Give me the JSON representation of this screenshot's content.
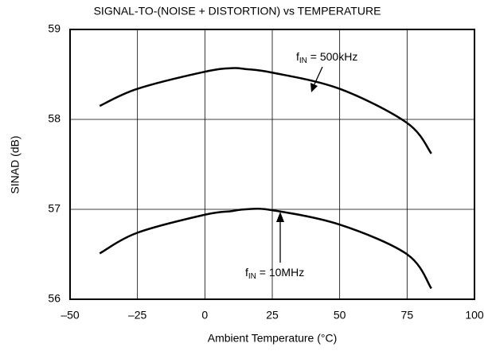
{
  "chart_data": {
    "type": "line",
    "title": "SIGNAL-TO-(NOISE + DISTORTION) vs TEMPERATURE",
    "x_label": "Ambient Temperature (°C)",
    "y_label": "SINAD (dB)",
    "x": [
      -39,
      -25,
      0,
      10,
      15,
      25,
      50,
      75,
      84
    ],
    "series": [
      {
        "label": {
          "main": "f",
          "sub": "IN",
          "rest": " = 500kHz"
        },
        "color": "#000000",
        "values": [
          58.15,
          58.34,
          58.53,
          58.57,
          58.56,
          58.52,
          58.34,
          57.96,
          57.62
        ]
      },
      {
        "label": {
          "main": "f",
          "sub": "IN",
          "rest": " = 10MHz"
        },
        "color": "#000000",
        "values": [
          56.51,
          56.74,
          56.94,
          56.98,
          57.0,
          56.99,
          56.83,
          56.5,
          56.12
        ]
      }
    ],
    "xlim": [
      -50,
      100
    ],
    "xticks": [
      {
        "value": -50,
        "label": "–50"
      },
      {
        "value": -25,
        "label": "–25"
      },
      0,
      25,
      50,
      75,
      100
    ],
    "ylim": [
      56,
      59
    ],
    "yticks": [
      56,
      57,
      58,
      59
    ],
    "grid": true
  }
}
